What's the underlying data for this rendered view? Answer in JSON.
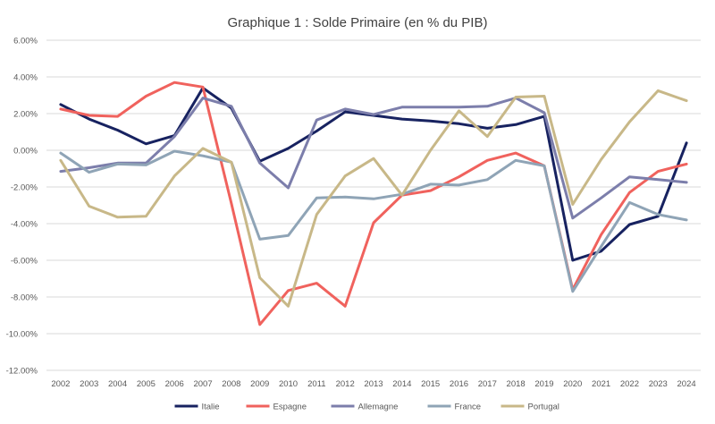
{
  "chart_data": {
    "type": "line",
    "title": "Graphique 1 : Solde Primaire (en % du PIB)",
    "xlabel": "",
    "ylabel": "",
    "ylim": [
      -12,
      6
    ],
    "y_ticks": [
      6,
      4,
      2,
      0,
      -2,
      -4,
      -6,
      -8,
      -10,
      -12
    ],
    "y_tick_labels": [
      "6.00%",
      "4.00%",
      "2.00%",
      "0.00%",
      "-2.00%",
      "-4.00%",
      "-6.00%",
      "-8.00%",
      "-10.00%",
      "-12.00%"
    ],
    "grid": "horizontal",
    "legend_position": "bottom",
    "x": [
      "2002",
      "2003",
      "2004",
      "2005",
      "2006",
      "2007",
      "2008",
      "2009",
      "2010",
      "2011",
      "2012",
      "2013",
      "2014",
      "2015",
      "2016",
      "2017",
      "2018",
      "2019",
      "2020",
      "2021",
      "2022",
      "2023",
      "2024"
    ],
    "series": [
      {
        "name": "Italie",
        "color": "#172260",
        "values": [
          2.5,
          1.7,
          1.1,
          0.35,
          0.8,
          3.4,
          2.3,
          -0.6,
          0.1,
          1.05,
          2.1,
          1.9,
          1.7,
          1.6,
          1.45,
          1.2,
          1.4,
          1.85,
          -6.0,
          -5.5,
          -4.05,
          -3.6,
          0.4
        ]
      },
      {
        "name": "Espagne",
        "color": "#f0625d",
        "values": [
          2.25,
          1.9,
          1.85,
          2.95,
          3.7,
          3.45,
          -2.9,
          -9.5,
          -7.65,
          -7.25,
          -8.5,
          -3.95,
          -2.45,
          -2.2,
          -1.45,
          -0.55,
          -0.15,
          -0.85,
          -7.6,
          -4.6,
          -2.3,
          -1.15,
          -0.75
        ]
      },
      {
        "name": "Allemagne",
        "color": "#7c7eab",
        "values": [
          -1.15,
          -0.95,
          -0.7,
          -0.7,
          0.75,
          2.85,
          2.4,
          -0.7,
          -2.05,
          1.65,
          2.25,
          1.95,
          2.35,
          2.35,
          2.35,
          2.4,
          2.85,
          2.05,
          -3.7,
          -2.6,
          -1.45,
          -1.6,
          -1.75
        ]
      },
      {
        "name": "France",
        "color": "#8fa4b6",
        "values": [
          -0.15,
          -1.2,
          -0.75,
          -0.8,
          -0.05,
          -0.3,
          -0.65,
          -4.85,
          -4.65,
          -2.6,
          -2.55,
          -2.65,
          -2.4,
          -1.85,
          -1.9,
          -1.6,
          -0.55,
          -0.85,
          -7.7,
          -5.25,
          -2.85,
          -3.5,
          -3.8
        ]
      },
      {
        "name": "Portugal",
        "color": "#c8b888",
        "values": [
          -0.55,
          -3.05,
          -3.65,
          -3.6,
          -1.4,
          0.1,
          -0.65,
          -6.95,
          -8.5,
          -3.5,
          -1.4,
          -0.45,
          -2.45,
          0.0,
          2.15,
          0.75,
          2.9,
          2.95,
          -2.95,
          -0.5,
          1.55,
          3.25,
          2.7
        ]
      }
    ]
  }
}
